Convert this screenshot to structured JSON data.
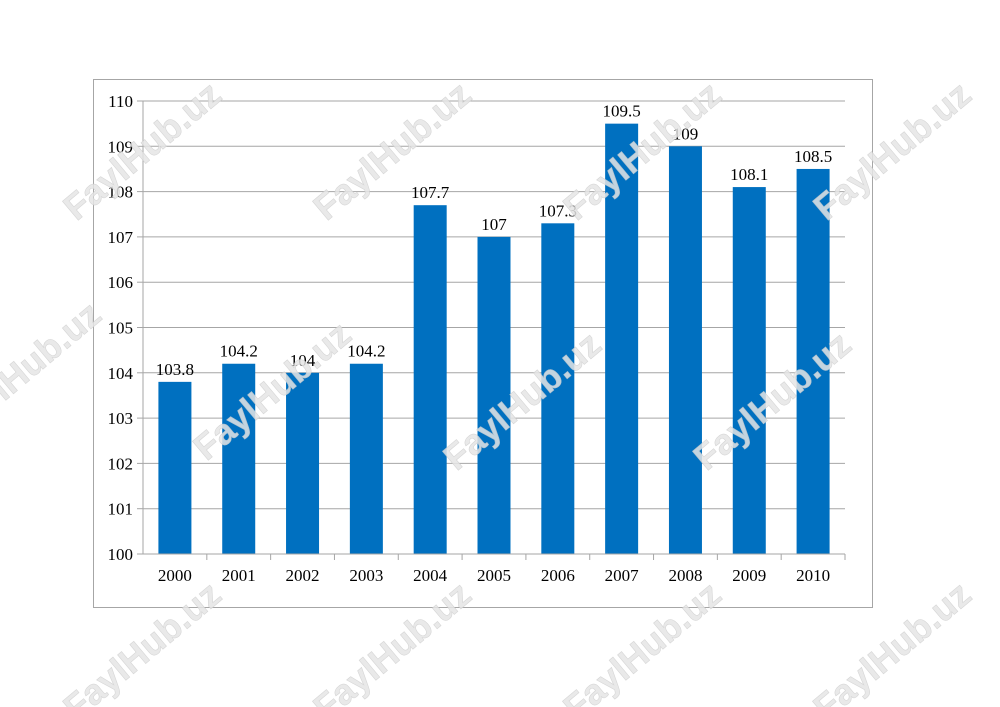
{
  "watermark_text": "FaylHub.uz",
  "colors": {
    "bar": "#0070c0",
    "grid": "#a6a6a6",
    "axis": "#a6a6a6",
    "frame_border": "#a6a6a6"
  },
  "chart_data": {
    "type": "bar",
    "title": "",
    "xlabel": "",
    "ylabel": "",
    "categories": [
      "2000",
      "2001",
      "2002",
      "2003",
      "2004",
      "2005",
      "2006",
      "2007",
      "2008",
      "2009",
      "2010"
    ],
    "values": [
      103.8,
      104.2,
      104,
      104.2,
      107.7,
      107,
      107.3,
      109.5,
      109,
      108.1,
      108.5
    ],
    "data_labels": [
      "103.8",
      "104.2",
      "104",
      "104.2",
      "107.7",
      "107",
      "107.3",
      "109.5",
      "109",
      "108.1",
      "108.5"
    ],
    "ylim": [
      100,
      110
    ],
    "yticks": [
      100,
      101,
      102,
      103,
      104,
      105,
      106,
      107,
      108,
      109,
      110
    ],
    "grid": true,
    "legend": "none"
  }
}
